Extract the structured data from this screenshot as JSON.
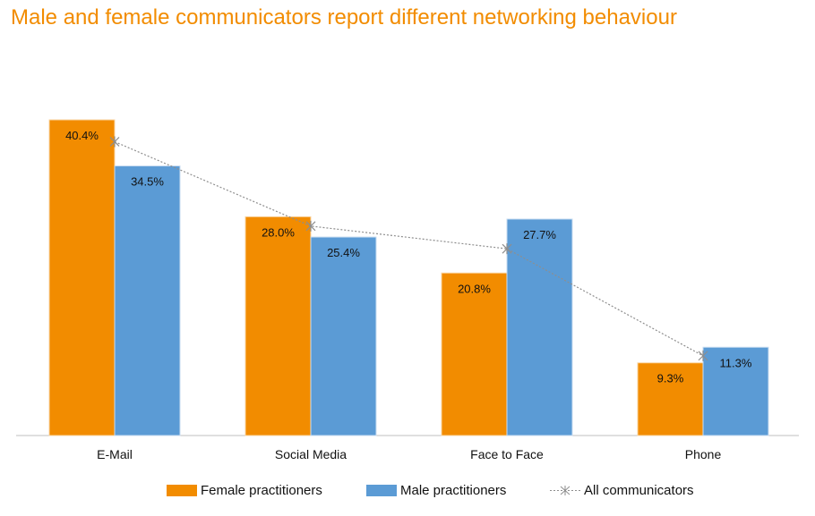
{
  "title": "Male and female communicators report different networking behaviour",
  "colors": {
    "female": "#F28C00",
    "male": "#5B9BD5",
    "all": "#8E8E8E",
    "axis": "#BFBFBF",
    "title": "#F28C00"
  },
  "legend": {
    "female": "Female practitioners",
    "male": "Male practitioners",
    "all": "All communicators"
  },
  "chart_data": {
    "type": "bar",
    "title": "Male and female communicators report different networking behaviour",
    "categories": [
      "E-Mail",
      "Social Media",
      "Face to Face",
      "Phone"
    ],
    "series": [
      {
        "name": "Female practitioners",
        "type": "bar",
        "values": [
          40.4,
          28.0,
          20.8,
          9.3
        ],
        "labels": [
          "40.4%",
          "28.0%",
          "20.8%",
          "9.3%"
        ]
      },
      {
        "name": "Male practitioners",
        "type": "bar",
        "values": [
          34.5,
          25.4,
          27.7,
          11.3
        ],
        "labels": [
          "34.5%",
          "25.4%",
          "27.7%",
          "11.3%"
        ]
      },
      {
        "name": "All communicators",
        "type": "line",
        "style": "dotted",
        "marker": "star",
        "values": [
          37.6,
          26.8,
          23.9,
          10.2
        ]
      }
    ],
    "ylim": [
      0,
      42
    ],
    "grid": false,
    "legend_position": "bottom",
    "xlabel": "",
    "ylabel": ""
  }
}
